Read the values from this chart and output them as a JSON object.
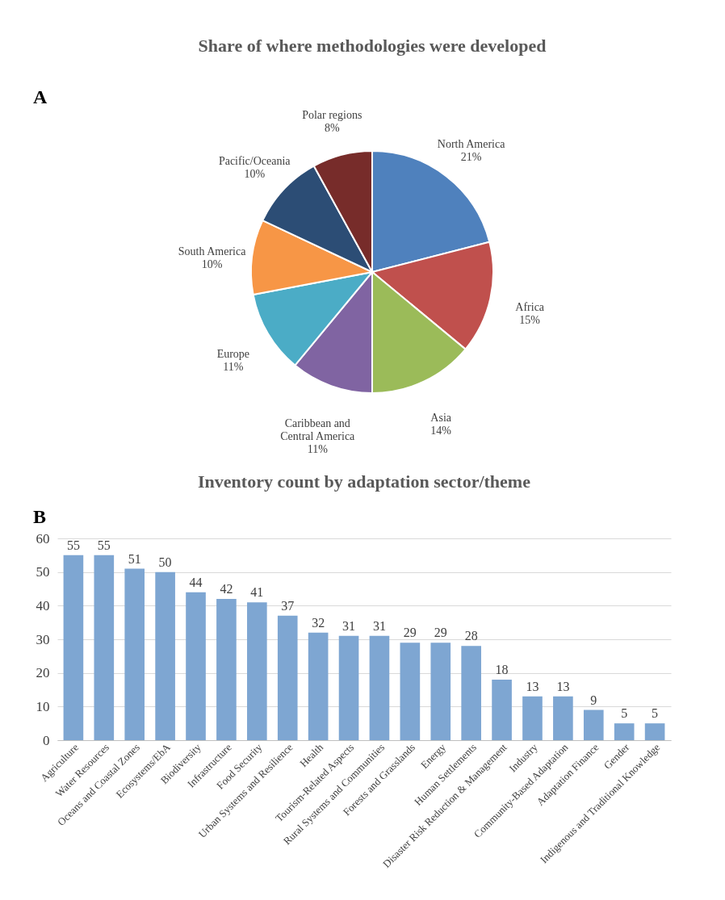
{
  "chart_data": [
    {
      "type": "pie",
      "title": "Share of where methodologies were developed",
      "annotations": [
        "A"
      ],
      "categories": [
        "North America",
        "Africa",
        "Asia",
        "Caribbean and Central America",
        "Europe",
        "South America",
        "Pacific/Oceania",
        "Polar regions"
      ],
      "values": [
        21,
        15,
        14,
        11,
        11,
        10,
        10,
        8
      ],
      "value_labels": [
        "21%",
        "15%",
        "14%",
        "11%",
        "11%",
        "10%",
        "10%",
        "8%"
      ],
      "colors": [
        "#4f81bd",
        "#c0504d",
        "#9bbb59",
        "#8064a2",
        "#4bacc6",
        "#f79646",
        "#2c4d75",
        "#772c2a"
      ],
      "legend": false
    },
    {
      "type": "bar",
      "title": "Inventory count by adaptation sector/theme",
      "annotations": [
        "B"
      ],
      "categories": [
        "Agriculture",
        "Water Resources",
        "Oceans and Coastal Zones",
        "Ecosystems/EbA",
        "Biodiversity",
        "Infrastructure",
        "Food Security",
        "Urban Systems and Resilience",
        "Health",
        "Tourism-Related Aspects",
        "Rural Systems and Communities",
        "Forests and Grasslands",
        "Energy",
        "Human Settlements",
        "Disaster Risk Reduction & Management",
        "Industry",
        "Community-Based Adaptation",
        "Adaptation Finance",
        "Gender",
        "Indigenous and Traditional Knowledge"
      ],
      "values": [
        55,
        55,
        51,
        50,
        44,
        42,
        41,
        37,
        32,
        31,
        31,
        29,
        29,
        28,
        18,
        13,
        13,
        9,
        5,
        5
      ],
      "color": "#7ea6d2",
      "ylim": [
        0,
        60
      ],
      "yticks": [
        0,
        10,
        20,
        30,
        40,
        50,
        60
      ],
      "grid": "y",
      "data_labels": true
    }
  ]
}
